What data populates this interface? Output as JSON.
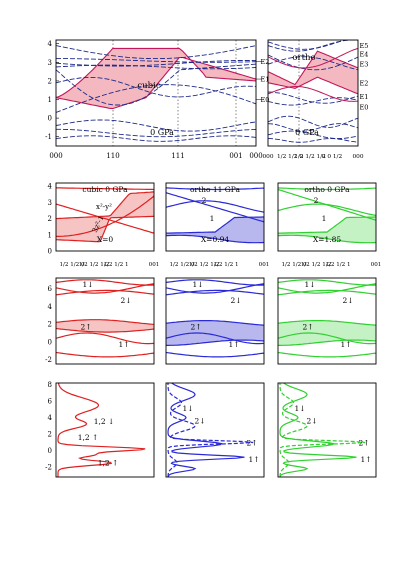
{
  "colors": {
    "red": "#e02020",
    "blue": "#2a2ad8",
    "green": "#30d030",
    "navy": "#1e2a8a",
    "magenta": "#c2185b",
    "pink_fill": "#f4b8c0",
    "red_fill": "#f7c4c4",
    "blue_fill": "#b8b8ef",
    "green_fill": "#c4f2c4"
  },
  "chart_data": [
    {
      "id": "top-cubic",
      "type": "line",
      "title": "cubic",
      "pressure_label": "0 GPa",
      "yticks": [
        "4",
        "3",
        "2",
        "1",
        "0",
        "-1"
      ],
      "ylim": [
        -1.5,
        4.2
      ],
      "xticks": [
        "000",
        "110",
        "111",
        "001",
        "000"
      ],
      "level_labels": [
        "E2",
        "E1",
        "E0"
      ]
    },
    {
      "id": "top-ortho",
      "type": "line",
      "title": "ortho",
      "pressure_label": "0 GPa",
      "xticks": [
        "000",
        "1/2 1/2 0",
        "1/2 1/2 1/2",
        "0 0 1/2",
        "000"
      ],
      "level_labels": [
        "E5",
        "E4",
        "E3",
        "E2",
        "E1",
        "E0"
      ]
    },
    {
      "id": "row2",
      "type": "area",
      "panels": [
        {
          "title": "cubic 0 GPa",
          "annotation": "X=0",
          "labels": [
            "x²-y²",
            "3z²-1"
          ],
          "color": "red"
        },
        {
          "title": "ortho 11 GPa",
          "annotation": "X=0.94",
          "labels": [
            "2",
            "1"
          ],
          "color": "blue"
        },
        {
          "title": "ortho 0 GPa",
          "annotation": "X=1.85",
          "labels": [
            "2",
            "1"
          ],
          "color": "green"
        }
      ],
      "yticks": [
        "4",
        "3",
        "2",
        "1",
        "0"
      ],
      "ylim": [
        0,
        4.2
      ],
      "xticks": [
        "1/2 1/2 0",
        "1/2 1/2 1/2",
        "1/2 1/2 1",
        "001"
      ]
    },
    {
      "id": "row3",
      "type": "area",
      "labels": [
        "1↓",
        "2↓",
        "2↑",
        "1↑"
      ],
      "yticks": [
        "6",
        "4",
        "2",
        "0",
        "-2"
      ],
      "ylim": [
        -2.5,
        7.2
      ]
    },
    {
      "id": "row4",
      "type": "line",
      "panels": [
        {
          "labels": [
            "1,2 ↓",
            "1,2 ↑",
            "1,2 ↑"
          ],
          "color": "red"
        },
        {
          "labels": [
            "1↓",
            "2↓",
            "2↑",
            "1↑"
          ],
          "color": "blue"
        },
        {
          "labels": [
            "1↓",
            "2↓",
            "2↑",
            "1↑"
          ],
          "color": "green"
        }
      ],
      "yticks": [
        "8",
        "6",
        "4",
        "2",
        "0",
        "-2"
      ],
      "ylim": [
        -3.2,
        8.2
      ]
    }
  ]
}
